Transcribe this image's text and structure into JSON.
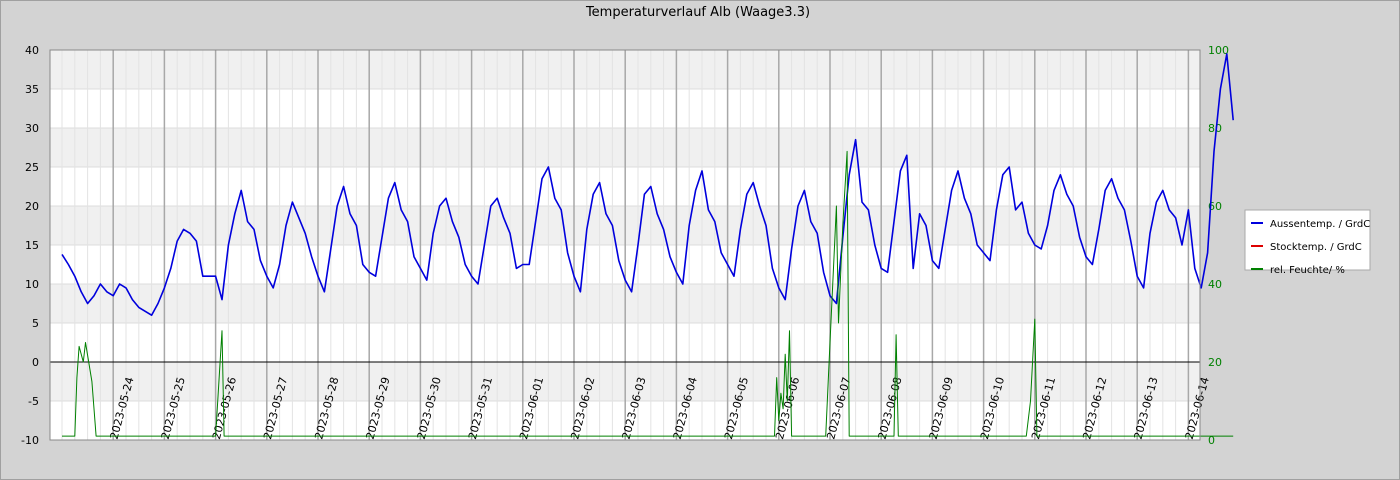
{
  "chart_data": {
    "type": "line",
    "title": "Temperaturverlauf Alb (Waage3.3)",
    "y_left": {
      "ylim": [
        -10,
        40
      ],
      "ticks": [
        -10,
        -5,
        0,
        5,
        10,
        15,
        20,
        25,
        30,
        35,
        40
      ]
    },
    "y_right": {
      "ylim": [
        0,
        100
      ],
      "ticks": [
        0,
        20,
        40,
        60,
        80,
        100
      ]
    },
    "x_tick_labels": [
      "2023-05-24",
      "2023-05-25",
      "2023-05-26",
      "2023-05-27",
      "2023-05-28",
      "2023-05-29",
      "2023-05-30",
      "2023-05-31",
      "2023-06-01",
      "2023-06-02",
      "2023-06-03",
      "2023-06-04",
      "2023-06-05",
      "2023-06-06",
      "2023-06-07",
      "2023-06-08",
      "2023-06-09",
      "2023-06-10",
      "2023-06-11",
      "2023-06-12",
      "2023-06-13",
      "2023-06-14"
    ],
    "x_start": "2023-05-23",
    "legend_position": "right",
    "grid": true,
    "series": [
      {
        "name": "Aussentemp.  / GrdC",
        "color": "#0000dd",
        "axis": "left",
        "points": [
          [
            "2023-05-23 00:00",
            13.8
          ],
          [
            "2023-05-23 03:00",
            12.5
          ],
          [
            "2023-05-23 06:00",
            11.0
          ],
          [
            "2023-05-23 09:00",
            9.0
          ],
          [
            "2023-05-23 12:00",
            7.5
          ],
          [
            "2023-05-23 15:00",
            8.5
          ],
          [
            "2023-05-23 18:00",
            10.0
          ],
          [
            "2023-05-23 21:00",
            9.0
          ],
          [
            "2023-05-24 00:00",
            8.5
          ],
          [
            "2023-05-24 03:00",
            10.0
          ],
          [
            "2023-05-24 06:00",
            9.5
          ],
          [
            "2023-05-24 09:00",
            8.0
          ],
          [
            "2023-05-24 12:00",
            7.0
          ],
          [
            "2023-05-24 15:00",
            6.5
          ],
          [
            "2023-05-24 18:00",
            6.0
          ],
          [
            "2023-05-24 21:00",
            7.5
          ],
          [
            "2023-05-25 00:00",
            9.5
          ],
          [
            "2023-05-25 03:00",
            12.0
          ],
          [
            "2023-05-25 06:00",
            15.5
          ],
          [
            "2023-05-25 09:00",
            17.0
          ],
          [
            "2023-05-25 12:00",
            16.5
          ],
          [
            "2023-05-25 15:00",
            15.5
          ],
          [
            "2023-05-25 18:00",
            11.0
          ],
          [
            "2023-05-25 21:00",
            11.0
          ],
          [
            "2023-05-26 00:00",
            11.0
          ],
          [
            "2023-05-26 03:00",
            8.0
          ],
          [
            "2023-05-26 06:00",
            15.0
          ],
          [
            "2023-05-26 09:00",
            19.0
          ],
          [
            "2023-05-26 12:00",
            22.0
          ],
          [
            "2023-05-26 15:00",
            18.0
          ],
          [
            "2023-05-26 18:00",
            17.0
          ],
          [
            "2023-05-26 21:00",
            13.0
          ],
          [
            "2023-05-27 00:00",
            11.0
          ],
          [
            "2023-05-27 03:00",
            9.5
          ],
          [
            "2023-05-27 06:00",
            12.5
          ],
          [
            "2023-05-27 09:00",
            17.5
          ],
          [
            "2023-05-27 12:00",
            20.5
          ],
          [
            "2023-05-27 15:00",
            18.5
          ],
          [
            "2023-05-27 18:00",
            16.5
          ],
          [
            "2023-05-27 21:00",
            13.5
          ],
          [
            "2023-05-28 00:00",
            11.0
          ],
          [
            "2023-05-28 03:00",
            9.0
          ],
          [
            "2023-05-28 06:00",
            14.5
          ],
          [
            "2023-05-28 09:00",
            20.0
          ],
          [
            "2023-05-28 12:00",
            22.5
          ],
          [
            "2023-05-28 15:00",
            19.0
          ],
          [
            "2023-05-28 18:00",
            17.5
          ],
          [
            "2023-05-28 21:00",
            12.5
          ],
          [
            "2023-05-29 00:00",
            11.5
          ],
          [
            "2023-05-29 03:00",
            11.0
          ],
          [
            "2023-05-29 06:00",
            16.0
          ],
          [
            "2023-05-29 09:00",
            21.0
          ],
          [
            "2023-05-29 12:00",
            23.0
          ],
          [
            "2023-05-29 15:00",
            19.5
          ],
          [
            "2023-05-29 18:00",
            18.0
          ],
          [
            "2023-05-29 21:00",
            13.5
          ],
          [
            "2023-05-30 00:00",
            12.0
          ],
          [
            "2023-05-30 03:00",
            10.5
          ],
          [
            "2023-05-30 06:00",
            16.5
          ],
          [
            "2023-05-30 09:00",
            20.0
          ],
          [
            "2023-05-30 12:00",
            21.0
          ],
          [
            "2023-05-30 15:00",
            18.0
          ],
          [
            "2023-05-30 18:00",
            16.0
          ],
          [
            "2023-05-30 21:00",
            12.5
          ],
          [
            "2023-05-31 00:00",
            11.0
          ],
          [
            "2023-05-31 03:00",
            10.0
          ],
          [
            "2023-05-31 06:00",
            15.0
          ],
          [
            "2023-05-31 09:00",
            20.0
          ],
          [
            "2023-05-31 12:00",
            21.0
          ],
          [
            "2023-05-31 15:00",
            18.5
          ],
          [
            "2023-05-31 18:00",
            16.5
          ],
          [
            "2023-05-31 21:00",
            12.0
          ],
          [
            "2023-06-01 00:00",
            12.5
          ],
          [
            "2023-06-01 03:00",
            12.5
          ],
          [
            "2023-06-01 06:00",
            18.0
          ],
          [
            "2023-06-01 09:00",
            23.5
          ],
          [
            "2023-06-01 12:00",
            25.0
          ],
          [
            "2023-06-01 15:00",
            21.0
          ],
          [
            "2023-06-01 18:00",
            19.5
          ],
          [
            "2023-06-01 21:00",
            14.0
          ],
          [
            "2023-06-02 00:00",
            11.0
          ],
          [
            "2023-06-02 03:00",
            9.0
          ],
          [
            "2023-06-02 06:00",
            17.0
          ],
          [
            "2023-06-02 09:00",
            21.5
          ],
          [
            "2023-06-02 12:00",
            23.0
          ],
          [
            "2023-06-02 15:00",
            19.0
          ],
          [
            "2023-06-02 18:00",
            17.5
          ],
          [
            "2023-06-02 21:00",
            13.0
          ],
          [
            "2023-06-03 00:00",
            10.5
          ],
          [
            "2023-06-03 03:00",
            9.0
          ],
          [
            "2023-06-03 06:00",
            15.0
          ],
          [
            "2023-06-03 09:00",
            21.5
          ],
          [
            "2023-06-03 12:00",
            22.5
          ],
          [
            "2023-06-03 15:00",
            19.0
          ],
          [
            "2023-06-03 18:00",
            17.0
          ],
          [
            "2023-06-03 21:00",
            13.5
          ],
          [
            "2023-06-04 00:00",
            11.5
          ],
          [
            "2023-06-04 03:00",
            10.0
          ],
          [
            "2023-06-04 06:00",
            17.5
          ],
          [
            "2023-06-04 09:00",
            22.0
          ],
          [
            "2023-06-04 12:00",
            24.5
          ],
          [
            "2023-06-04 15:00",
            19.5
          ],
          [
            "2023-06-04 18:00",
            18.0
          ],
          [
            "2023-06-04 21:00",
            14.0
          ],
          [
            "2023-06-05 00:00",
            12.5
          ],
          [
            "2023-06-05 03:00",
            11.0
          ],
          [
            "2023-06-05 06:00",
            17.0
          ],
          [
            "2023-06-05 09:00",
            21.5
          ],
          [
            "2023-06-05 12:00",
            23.0
          ],
          [
            "2023-06-05 15:00",
            20.0
          ],
          [
            "2023-06-05 18:00",
            17.5
          ],
          [
            "2023-06-05 21:00",
            12.0
          ],
          [
            "2023-06-06 00:00",
            9.5
          ],
          [
            "2023-06-06 03:00",
            8.0
          ],
          [
            "2023-06-06 06:00",
            14.5
          ],
          [
            "2023-06-06 09:00",
            20.0
          ],
          [
            "2023-06-06 12:00",
            22.0
          ],
          [
            "2023-06-06 15:00",
            18.0
          ],
          [
            "2023-06-06 18:00",
            16.5
          ],
          [
            "2023-06-06 21:00",
            11.5
          ],
          [
            "2023-06-07 00:00",
            8.5
          ],
          [
            "2023-06-07 03:00",
            7.5
          ],
          [
            "2023-06-07 06:00",
            16.0
          ],
          [
            "2023-06-07 09:00",
            24.0
          ],
          [
            "2023-06-07 12:00",
            28.5
          ],
          [
            "2023-06-07 15:00",
            20.5
          ],
          [
            "2023-06-07 18:00",
            19.5
          ],
          [
            "2023-06-07 21:00",
            15.0
          ],
          [
            "2023-06-08 00:00",
            12.0
          ],
          [
            "2023-06-08 03:00",
            11.5
          ],
          [
            "2023-06-08 06:00",
            18.0
          ],
          [
            "2023-06-08 09:00",
            24.5
          ],
          [
            "2023-06-08 12:00",
            26.5
          ],
          [
            "2023-06-08 15:00",
            12.0
          ],
          [
            "2023-06-08 18:00",
            19.0
          ],
          [
            "2023-06-08 21:00",
            17.5
          ],
          [
            "2023-06-09 00:00",
            13.0
          ],
          [
            "2023-06-09 03:00",
            12.0
          ],
          [
            "2023-06-09 06:00",
            17.0
          ],
          [
            "2023-06-09 09:00",
            22.0
          ],
          [
            "2023-06-09 12:00",
            24.5
          ],
          [
            "2023-06-09 15:00",
            21.0
          ],
          [
            "2023-06-09 18:00",
            19.0
          ],
          [
            "2023-06-09 21:00",
            15.0
          ],
          [
            "2023-06-10 00:00",
            14.0
          ],
          [
            "2023-06-10 03:00",
            13.0
          ],
          [
            "2023-06-10 06:00",
            19.5
          ],
          [
            "2023-06-10 09:00",
            24.0
          ],
          [
            "2023-06-10 12:00",
            25.0
          ],
          [
            "2023-06-10 15:00",
            19.5
          ],
          [
            "2023-06-10 18:00",
            20.5
          ],
          [
            "2023-06-10 21:00",
            16.5
          ],
          [
            "2023-06-11 00:00",
            15.0
          ],
          [
            "2023-06-11 03:00",
            14.5
          ],
          [
            "2023-06-11 06:00",
            17.5
          ],
          [
            "2023-06-11 09:00",
            22.0
          ],
          [
            "2023-06-11 12:00",
            24.0
          ],
          [
            "2023-06-11 15:00",
            21.5
          ],
          [
            "2023-06-11 18:00",
            20.0
          ],
          [
            "2023-06-11 21:00",
            16.0
          ],
          [
            "2023-06-12 00:00",
            13.5
          ],
          [
            "2023-06-12 03:00",
            12.5
          ],
          [
            "2023-06-12 06:00",
            17.0
          ],
          [
            "2023-06-12 09:00",
            22.0
          ],
          [
            "2023-06-12 12:00",
            23.5
          ],
          [
            "2023-06-12 15:00",
            21.0
          ],
          [
            "2023-06-12 18:00",
            19.5
          ],
          [
            "2023-06-12 21:00",
            15.5
          ],
          [
            "2023-06-13 00:00",
            11.0
          ],
          [
            "2023-06-13 03:00",
            9.5
          ],
          [
            "2023-06-13 06:00",
            16.5
          ],
          [
            "2023-06-13 09:00",
            20.5
          ],
          [
            "2023-06-13 12:00",
            22.0
          ],
          [
            "2023-06-13 15:00",
            19.5
          ],
          [
            "2023-06-13 18:00",
            18.5
          ],
          [
            "2023-06-13 21:00",
            15.0
          ],
          [
            "2023-06-14 00:00",
            19.5
          ],
          [
            "2023-06-14 03:00",
            12.0
          ],
          [
            "2023-06-14 06:00",
            9.5
          ],
          [
            "2023-06-14 09:00",
            14.0
          ],
          [
            "2023-06-14 12:00",
            27.0
          ],
          [
            "2023-06-14 15:00",
            35.0
          ],
          [
            "2023-06-14 18:00",
            39.5
          ],
          [
            "2023-06-14 21:00",
            31.0
          ]
        ]
      },
      {
        "name": "Stocktemp.  / GrdC",
        "color": "#dd0000",
        "axis": "left",
        "points": []
      },
      {
        "name": "rel. Feuchte/ %",
        "color": "#008000",
        "axis": "right",
        "points": [
          [
            "2023-05-23 00:00",
            1
          ],
          [
            "2023-05-23 06:00",
            1
          ],
          [
            "2023-05-23 07:00",
            16
          ],
          [
            "2023-05-23 08:00",
            24
          ],
          [
            "2023-05-23 10:00",
            20
          ],
          [
            "2023-05-23 11:00",
            25
          ],
          [
            "2023-05-23 14:00",
            15
          ],
          [
            "2023-05-23 16:00",
            1
          ],
          [
            "2023-05-26 00:00",
            1
          ],
          [
            "2023-05-26 03:00",
            28
          ],
          [
            "2023-05-26 04:00",
            1
          ],
          [
            "2023-06-05 22:00",
            1
          ],
          [
            "2023-06-05 23:00",
            16
          ],
          [
            "2023-06-06 00:00",
            5
          ],
          [
            "2023-06-06 01:00",
            12
          ],
          [
            "2023-06-06 02:00",
            8
          ],
          [
            "2023-06-06 03:00",
            22
          ],
          [
            "2023-06-06 04:00",
            10
          ],
          [
            "2023-06-06 05:00",
            28
          ],
          [
            "2023-06-06 06:00",
            1
          ],
          [
            "2023-06-06 22:00",
            1
          ],
          [
            "2023-06-07 00:00",
            25
          ],
          [
            "2023-06-07 03:00",
            60
          ],
          [
            "2023-06-07 04:00",
            30
          ],
          [
            "2023-06-07 06:00",
            55
          ],
          [
            "2023-06-07 08:00",
            74
          ],
          [
            "2023-06-07 09:00",
            1
          ],
          [
            "2023-06-08 06:00",
            1
          ],
          [
            "2023-06-08 07:00",
            27
          ],
          [
            "2023-06-08 08:00",
            1
          ],
          [
            "2023-06-10 20:00",
            1
          ],
          [
            "2023-06-10 22:00",
            10
          ],
          [
            "2023-06-11 00:00",
            31
          ],
          [
            "2023-06-11 01:00",
            1
          ],
          [
            "2023-06-14 21:00",
            1
          ]
        ]
      }
    ]
  }
}
